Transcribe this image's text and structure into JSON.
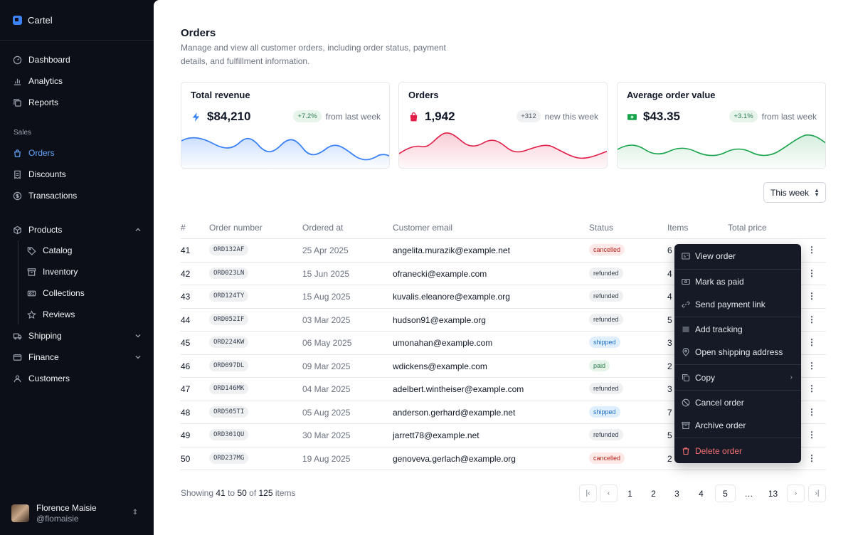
{
  "app": {
    "name": "Cartel"
  },
  "sidebar": {
    "top_items": [
      {
        "label": "Dashboard",
        "icon": "gauge-icon"
      },
      {
        "label": "Analytics",
        "icon": "bar-chart-icon"
      },
      {
        "label": "Reports",
        "icon": "copy-icon"
      }
    ],
    "section_label": "Sales",
    "sales_items": [
      {
        "label": "Orders",
        "icon": "shopping-bag-icon",
        "active": true
      },
      {
        "label": "Discounts",
        "icon": "receipt-icon"
      },
      {
        "label": "Transactions",
        "icon": "dollar-circle-icon"
      }
    ],
    "products": {
      "label": "Products",
      "children": [
        {
          "label": "Catalog",
          "icon": "tag-icon"
        },
        {
          "label": "Inventory",
          "icon": "archive-icon"
        },
        {
          "label": "Collections",
          "icon": "collection-icon"
        },
        {
          "label": "Reviews",
          "icon": "star-icon"
        }
      ]
    },
    "shipping_label": "Shipping",
    "finance_label": "Finance",
    "customers_label": "Customers",
    "user": {
      "name": "Florence Maisie",
      "handle": "@flomaisie"
    }
  },
  "header": {
    "title": "Orders",
    "description": "Manage and view all customer orders, including order status, payment details, and fulfillment information."
  },
  "cards": [
    {
      "title": "Total revenue",
      "value": "$84,210",
      "badge": "+7.2%",
      "delta_text": "from last week",
      "icon": "lightning-icon",
      "color": "#3b82f6"
    },
    {
      "title": "Orders",
      "value": "1,942",
      "badge": "+312",
      "delta_text": "new this week",
      "icon": "shopping-bag-icon",
      "color": "#e11d48"
    },
    {
      "title": "Average order value",
      "value": "$43.35",
      "badge": "+3.1%",
      "delta_text": "from last week",
      "icon": "banknote-icon",
      "color": "#16a34a"
    }
  ],
  "period_select": {
    "value": "This week"
  },
  "table": {
    "columns": [
      "#",
      "Order number",
      "Ordered at",
      "Customer email",
      "Status",
      "Items",
      "Total price"
    ],
    "rows": [
      {
        "id": "41",
        "order": "ORD132AF",
        "date": "25 Apr 2025",
        "email": "angelita.murazik@example.net",
        "status": "cancelled",
        "items": "6"
      },
      {
        "id": "42",
        "order": "ORD023LN",
        "date": "15 Jun 2025",
        "email": "ofranecki@example.com",
        "status": "refunded",
        "items": "4"
      },
      {
        "id": "43",
        "order": "ORD124TY",
        "date": "15 Aug 2025",
        "email": "kuvalis.eleanore@example.org",
        "status": "refunded",
        "items": "4"
      },
      {
        "id": "44",
        "order": "ORD052IF",
        "date": "03 Mar 2025",
        "email": "hudson91@example.org",
        "status": "refunded",
        "items": "5"
      },
      {
        "id": "45",
        "order": "ORD224KW",
        "date": "06 May 2025",
        "email": "umonahan@example.com",
        "status": "shipped",
        "items": "3"
      },
      {
        "id": "46",
        "order": "ORD097DL",
        "date": "09 Mar 2025",
        "email": "wdickens@example.com",
        "status": "paid",
        "items": "2"
      },
      {
        "id": "47",
        "order": "ORD146MK",
        "date": "04 Mar 2025",
        "email": "adelbert.wintheiser@example.com",
        "status": "refunded",
        "items": "3"
      },
      {
        "id": "48",
        "order": "ORD505TI",
        "date": "05 Aug 2025",
        "email": "anderson.gerhard@example.net",
        "status": "shipped",
        "items": "7"
      },
      {
        "id": "49",
        "order": "ORD301QU",
        "date": "30 Mar 2025",
        "email": "jarrett78@example.net",
        "status": "refunded",
        "items": "5"
      },
      {
        "id": "50",
        "order": "ORD237MG",
        "date": "19 Aug 2025",
        "email": "genoveva.gerlach@example.org",
        "status": "cancelled",
        "items": "2"
      }
    ]
  },
  "context_menu": {
    "items": [
      {
        "label": "View order",
        "icon": "id-card-icon"
      },
      {
        "label": "Mark as paid",
        "icon": "banknote-icon"
      },
      {
        "label": "Send payment link",
        "icon": "link-icon"
      },
      {
        "label": "Add tracking",
        "icon": "list-icon"
      },
      {
        "label": "Open shipping address",
        "icon": "map-pin-icon"
      },
      {
        "label": "Copy",
        "icon": "copy-icon"
      },
      {
        "label": "Cancel order",
        "icon": "ban-icon"
      },
      {
        "label": "Archive order",
        "icon": "archive-icon"
      },
      {
        "label": "Delete order",
        "icon": "trash-icon"
      }
    ]
  },
  "pagination": {
    "showing_prefix": "Showing",
    "from": "41",
    "to_word": "to",
    "to": "50",
    "of_word": "of",
    "total": "125",
    "suffix": "items",
    "pages": [
      "1",
      "2",
      "3",
      "4",
      "5",
      "…",
      "13"
    ],
    "current": "5"
  }
}
